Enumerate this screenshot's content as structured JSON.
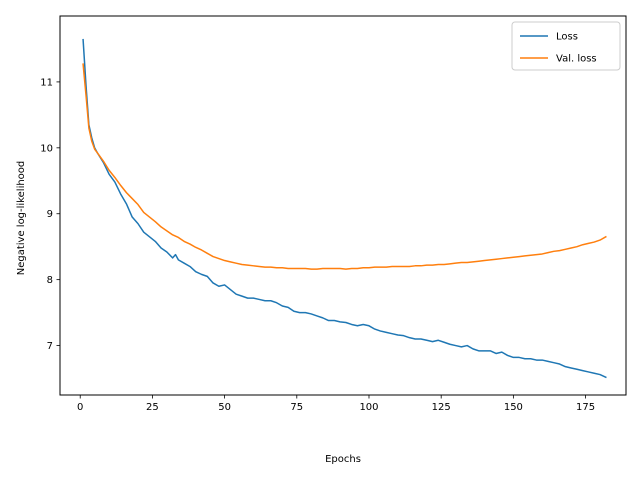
{
  "chart_data": {
    "type": "line",
    "title": "",
    "xlabel": "Epochs",
    "ylabel": "Negative log-likelihood",
    "xlim": [
      -7,
      189
    ],
    "ylim": [
      6.25,
      12.0
    ],
    "xticks": [
      0,
      25,
      50,
      75,
      100,
      125,
      150,
      175
    ],
    "yticks": [
      7,
      8,
      9,
      10,
      11
    ],
    "grid": false,
    "legend_position": "top-right",
    "series": [
      {
        "name": "Loss",
        "color": "#1f77b4",
        "x": [
          1,
          2,
          3,
          4,
          5,
          6,
          8,
          10,
          12,
          14,
          16,
          18,
          20,
          22,
          24,
          26,
          28,
          30,
          32,
          33,
          34,
          36,
          38,
          40,
          42,
          44,
          46,
          48,
          50,
          52,
          54,
          56,
          58,
          60,
          62,
          64,
          66,
          68,
          70,
          72,
          74,
          76,
          78,
          80,
          82,
          84,
          86,
          88,
          90,
          92,
          94,
          96,
          98,
          100,
          102,
          104,
          106,
          108,
          110,
          112,
          114,
          116,
          118,
          120,
          122,
          124,
          126,
          128,
          130,
          132,
          134,
          136,
          138,
          140,
          142,
          144,
          146,
          148,
          150,
          152,
          154,
          156,
          158,
          160,
          162,
          164,
          166,
          168,
          170,
          172,
          174,
          176,
          178,
          180,
          182
        ],
        "y": [
          11.64,
          10.95,
          10.35,
          10.15,
          10.0,
          9.92,
          9.78,
          9.6,
          9.48,
          9.3,
          9.15,
          8.95,
          8.85,
          8.72,
          8.65,
          8.58,
          8.48,
          8.42,
          8.33,
          8.38,
          8.3,
          8.25,
          8.2,
          8.12,
          8.08,
          8.05,
          7.95,
          7.9,
          7.92,
          7.85,
          7.78,
          7.75,
          7.72,
          7.72,
          7.7,
          7.68,
          7.68,
          7.65,
          7.6,
          7.58,
          7.52,
          7.5,
          7.5,
          7.48,
          7.45,
          7.42,
          7.38,
          7.38,
          7.36,
          7.35,
          7.32,
          7.3,
          7.32,
          7.3,
          7.25,
          7.22,
          7.2,
          7.18,
          7.16,
          7.15,
          7.12,
          7.1,
          7.1,
          7.08,
          7.06,
          7.08,
          7.05,
          7.02,
          7.0,
          6.98,
          7.0,
          6.95,
          6.92,
          6.92,
          6.92,
          6.88,
          6.9,
          6.85,
          6.82,
          6.82,
          6.8,
          6.8,
          6.78,
          6.78,
          6.76,
          6.74,
          6.72,
          6.68,
          6.66,
          6.64,
          6.62,
          6.6,
          6.58,
          6.56,
          6.52
        ]
      },
      {
        "name": "Val. loss",
        "color": "#ff7f0e",
        "x": [
          1,
          2,
          3,
          4,
          5,
          6,
          8,
          10,
          12,
          14,
          16,
          18,
          20,
          22,
          24,
          26,
          28,
          30,
          32,
          34,
          36,
          38,
          40,
          42,
          44,
          46,
          48,
          50,
          52,
          54,
          56,
          58,
          60,
          62,
          64,
          66,
          68,
          70,
          72,
          74,
          76,
          78,
          80,
          82,
          84,
          86,
          88,
          90,
          92,
          94,
          96,
          98,
          100,
          102,
          104,
          106,
          108,
          110,
          112,
          114,
          116,
          118,
          120,
          122,
          124,
          126,
          128,
          130,
          132,
          134,
          136,
          138,
          140,
          142,
          144,
          146,
          148,
          150,
          152,
          154,
          156,
          158,
          160,
          162,
          164,
          166,
          168,
          170,
          172,
          174,
          176,
          178,
          180,
          182
        ],
        "y": [
          11.27,
          10.8,
          10.3,
          10.1,
          9.98,
          9.92,
          9.8,
          9.66,
          9.55,
          9.43,
          9.32,
          9.23,
          9.14,
          9.02,
          8.95,
          8.88,
          8.8,
          8.74,
          8.68,
          8.64,
          8.58,
          8.54,
          8.49,
          8.45,
          8.4,
          8.35,
          8.32,
          8.29,
          8.27,
          8.25,
          8.23,
          8.22,
          8.21,
          8.2,
          8.19,
          8.19,
          8.18,
          8.18,
          8.17,
          8.17,
          8.17,
          8.17,
          8.16,
          8.16,
          8.17,
          8.17,
          8.17,
          8.17,
          8.16,
          8.17,
          8.17,
          8.18,
          8.18,
          8.19,
          8.19,
          8.19,
          8.2,
          8.2,
          8.2,
          8.2,
          8.21,
          8.21,
          8.22,
          8.22,
          8.23,
          8.23,
          8.24,
          8.25,
          8.26,
          8.26,
          8.27,
          8.28,
          8.29,
          8.3,
          8.31,
          8.32,
          8.33,
          8.34,
          8.35,
          8.36,
          8.37,
          8.38,
          8.39,
          8.41,
          8.43,
          8.44,
          8.46,
          8.48,
          8.5,
          8.53,
          8.55,
          8.57,
          8.6,
          8.65
        ]
      }
    ]
  }
}
